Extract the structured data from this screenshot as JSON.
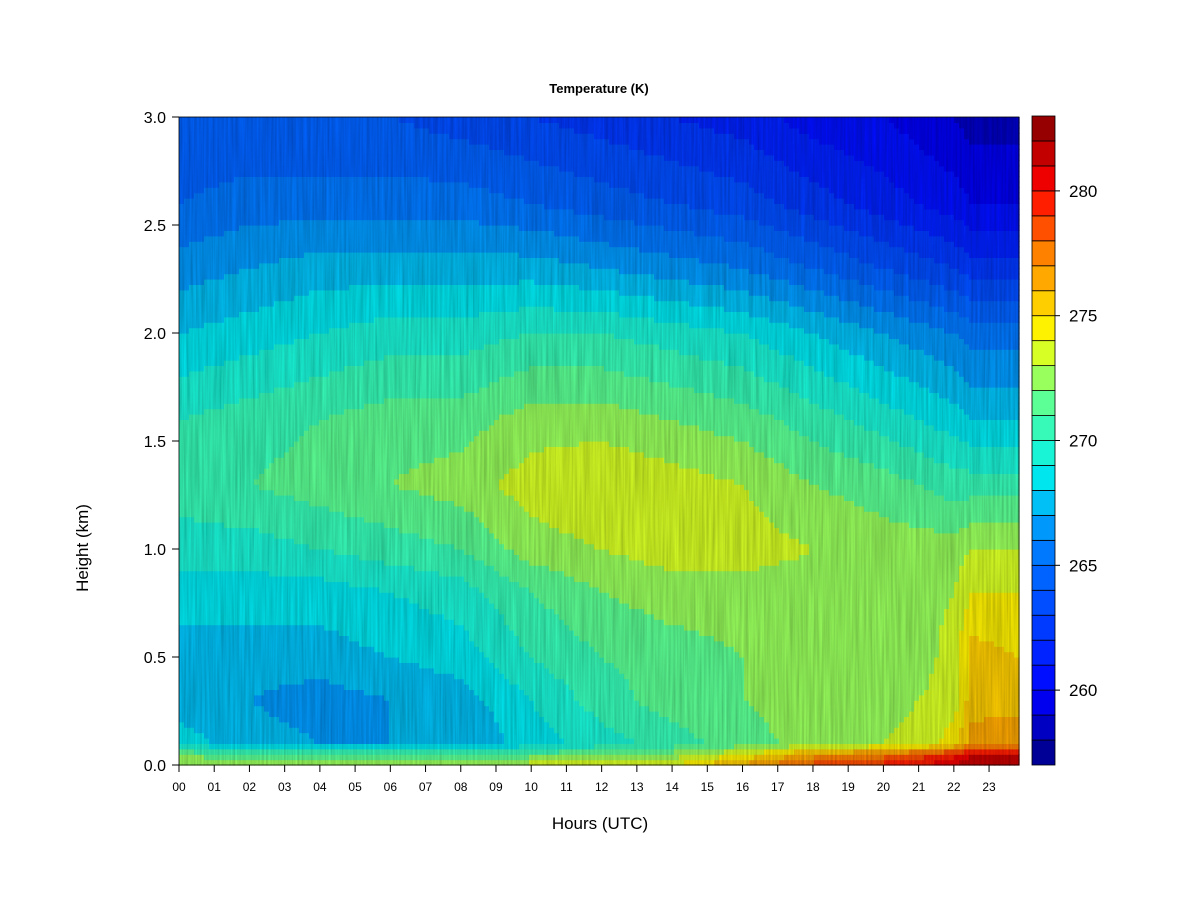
{
  "chart_data": {
    "type": "heatmap",
    "title": "Temperature (K)",
    "xlabel": "Hours (UTC)",
    "ylabel": "Height (km)",
    "xlim": [
      0,
      23.85
    ],
    "ylim": [
      0.0,
      3.0
    ],
    "x_ticks": [
      "00",
      "01",
      "02",
      "03",
      "04",
      "05",
      "06",
      "07",
      "08",
      "09",
      "10",
      "11",
      "12",
      "13",
      "14",
      "15",
      "16",
      "17",
      "18",
      "19",
      "20",
      "21",
      "22",
      "23"
    ],
    "y_ticks": [
      "0.0",
      "0.5",
      "1.0",
      "1.5",
      "2.0",
      "2.5",
      "3.0"
    ],
    "colorbar": {
      "min": 257.0,
      "max": 283.0,
      "levels": 26,
      "tick_values": [
        260,
        265,
        270,
        275,
        280
      ],
      "tick_labels": [
        "260",
        "265",
        "270",
        "275",
        "280"
      ]
    },
    "hours": [
      0,
      2,
      4,
      6,
      8,
      10,
      12,
      14,
      16,
      18,
      20,
      21,
      22,
      22.5,
      23.85
    ],
    "heights_km": [
      0.0,
      0.05,
      0.1,
      0.3,
      0.5,
      0.8,
      1.0,
      1.3,
      1.6,
      2.0,
      2.3,
      2.6,
      3.0
    ],
    "temperature_K": [
      [
        272.5,
        272.5,
        272.5,
        272.5,
        272.5,
        273.5,
        273.5,
        274.0,
        276.5,
        278.5,
        279.5,
        280.0,
        281.0,
        282.0,
        282.0
      ],
      [
        272.0,
        271.5,
        271.0,
        271.0,
        271.0,
        271.5,
        272.0,
        272.5,
        274.0,
        276.5,
        277.5,
        278.5,
        279.5,
        281.0,
        281.0
      ],
      [
        268.5,
        267.5,
        267.0,
        267.0,
        267.0,
        268.5,
        269.5,
        270.5,
        271.5,
        272.5,
        273.0,
        273.5,
        274.5,
        276.5,
        277.0
      ],
      [
        267.5,
        267.0,
        266.5,
        267.0,
        267.5,
        269.0,
        270.5,
        271.5,
        272.0,
        272.5,
        272.5,
        273.0,
        273.5,
        275.5,
        275.5
      ],
      [
        267.5,
        267.5,
        267.5,
        268.0,
        268.5,
        270.0,
        271.0,
        271.5,
        272.0,
        272.5,
        272.5,
        272.5,
        273.5,
        275.5,
        275.0
      ],
      [
        268.5,
        268.5,
        268.5,
        269.0,
        269.5,
        271.0,
        272.0,
        272.5,
        272.5,
        272.5,
        272.5,
        272.5,
        273.0,
        274.0,
        274.0
      ],
      [
        269.5,
        269.5,
        270.0,
        270.5,
        271.0,
        272.5,
        273.0,
        273.5,
        273.5,
        273.0,
        272.5,
        272.5,
        272.5,
        273.0,
        273.0
      ],
      [
        270.5,
        271.0,
        271.5,
        272.0,
        272.5,
        273.5,
        274.0,
        273.5,
        273.0,
        272.0,
        271.5,
        271.0,
        270.5,
        270.5,
        270.5
      ],
      [
        270.0,
        270.5,
        271.0,
        271.5,
        271.5,
        272.5,
        272.5,
        272.0,
        271.5,
        270.5,
        269.5,
        269.0,
        268.5,
        268.0,
        268.0
      ],
      [
        268.0,
        268.5,
        269.0,
        269.5,
        269.5,
        270.0,
        270.0,
        269.5,
        269.0,
        268.0,
        267.0,
        266.5,
        266.0,
        265.5,
        265.5
      ],
      [
        266.5,
        267.0,
        267.5,
        267.5,
        267.5,
        267.5,
        267.0,
        266.5,
        266.0,
        265.0,
        264.0,
        263.5,
        263.0,
        262.5,
        262.5
      ],
      [
        265.0,
        265.5,
        265.5,
        265.5,
        265.5,
        265.0,
        264.5,
        264.0,
        263.5,
        262.5,
        261.5,
        261.0,
        260.5,
        260.0,
        260.0
      ],
      [
        264.0,
        264.0,
        264.0,
        264.0,
        263.5,
        263.0,
        262.5,
        262.0,
        261.5,
        260.5,
        260.0,
        259.5,
        259.0,
        258.5,
        258.5
      ]
    ]
  }
}
